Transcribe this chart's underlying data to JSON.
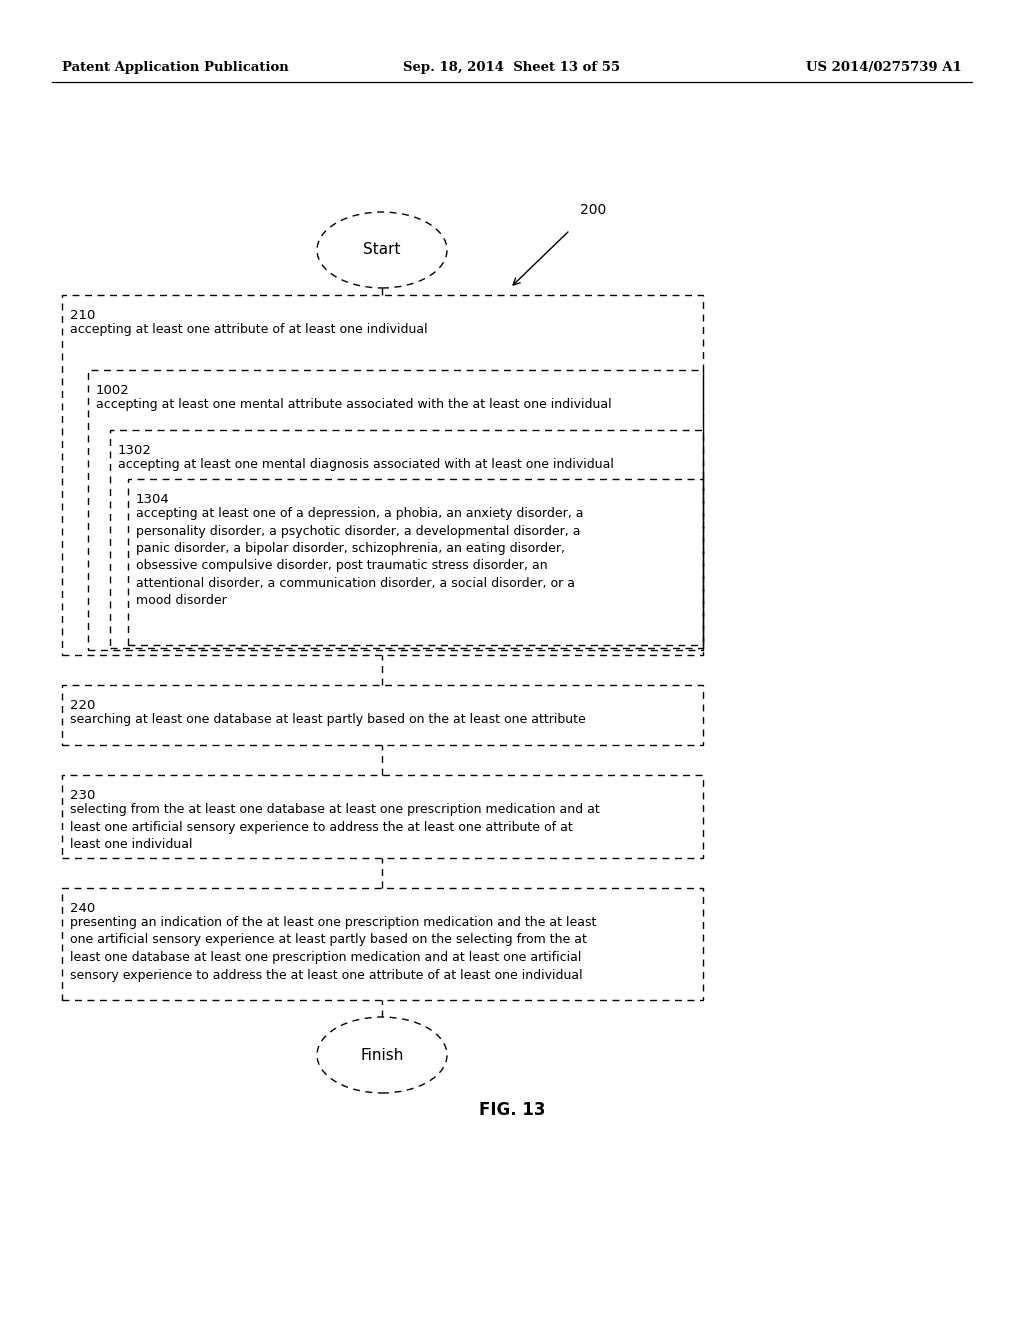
{
  "bg_color": "#ffffff",
  "header_left": "Patent Application Publication",
  "header_mid": "Sep. 18, 2014  Sheet 13 of 55",
  "header_right": "US 2014/0275739 A1",
  "start_label": "Start",
  "finish_label": "Finish",
  "figure_label": "FIG. 13",
  "ref_200": "200",
  "text_210": "accepting at least one attribute of at least one individual",
  "text_1002": "accepting at least one mental attribute associated with the at least one individual",
  "text_1302": "accepting at least one mental diagnosis associated with at least one individual",
  "text_1304": "accepting at least one of a depression, a phobia, an anxiety disorder, a\npersonality disorder, a psychotic disorder, a developmental disorder, a\npanic disorder, a bipolar disorder, schizophrenia, an eating disorder,\nobsessive compulsive disorder, post traumatic stress disorder, an\nattentional disorder, a communication disorder, a social disorder, or a\nmood disorder",
  "text_220": "searching at least one database at least partly based on the at least one attribute",
  "text_230": "selecting from the at least one database at least one prescription medication and at\nleast one artificial sensory experience to address the at least one attribute of at\nleast one individual",
  "text_240": "presenting an indication of the at least one prescription medication and the at least\none artificial sensory experience at least partly based on the selecting from the at\nleast one database at least one prescription medication and at least one artificial\nsensory experience to address the at least one attribute of at least one individual"
}
